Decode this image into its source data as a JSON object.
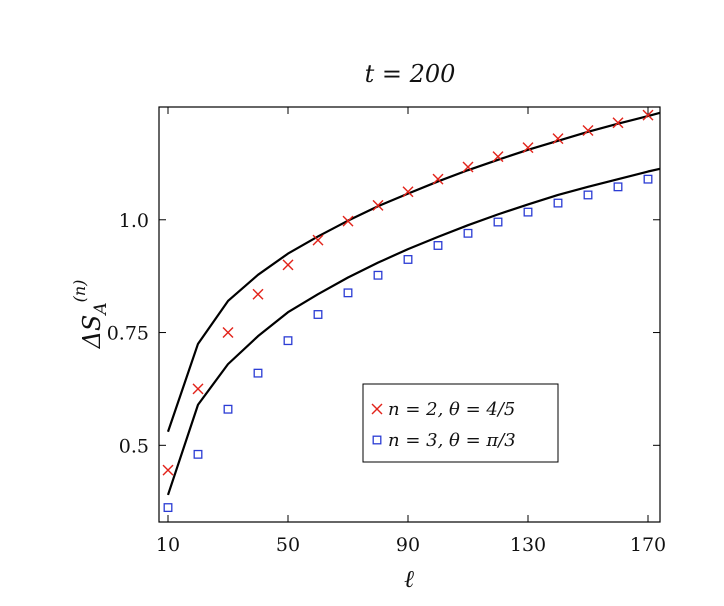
{
  "chart_data": {
    "type": "scatter",
    "title": "t = 200",
    "xlabel": "ℓ",
    "ylabel": "ΔS_A^(n)",
    "xlim": [
      7,
      174
    ],
    "ylim": [
      0.33,
      1.25
    ],
    "xticks": [
      10,
      50,
      90,
      130,
      170
    ],
    "yticks": [
      0.5,
      0.75,
      1.0
    ],
    "ytick_labels": [
      "0.5",
      "0.75",
      "1.0"
    ],
    "grid": false,
    "legend_position": "lower-right",
    "series": [
      {
        "name": "n = 2,  θ = 4/5",
        "marker": "x",
        "color": "#e2231a",
        "x": [
          10,
          20,
          30,
          40,
          50,
          60,
          70,
          80,
          90,
          100,
          110,
          120,
          130,
          140,
          150,
          160,
          170
        ],
        "y": [
          0.445,
          0.625,
          0.75,
          0.835,
          0.9,
          0.955,
          0.997,
          1.032,
          1.062,
          1.09,
          1.117,
          1.14,
          1.16,
          1.18,
          1.198,
          1.215,
          1.232
        ]
      },
      {
        "name": "n = 3,  θ = π/3",
        "marker": "square",
        "color": "#2b3cd4",
        "x": [
          10,
          20,
          30,
          40,
          50,
          60,
          70,
          80,
          90,
          100,
          110,
          120,
          130,
          140,
          150,
          160,
          170
        ],
        "y": [
          0.362,
          0.48,
          0.58,
          0.66,
          0.732,
          0.79,
          0.838,
          0.877,
          0.912,
          0.943,
          0.97,
          0.995,
          1.017,
          1.037,
          1.055,
          1.073,
          1.09
        ]
      }
    ],
    "curves": [
      {
        "x": [
          10,
          20,
          30,
          40,
          50,
          60,
          70,
          80,
          90,
          100,
          110,
          120,
          130,
          140,
          150,
          160,
          170,
          174
        ],
        "y": [
          0.53,
          0.725,
          0.82,
          0.878,
          0.925,
          0.963,
          0.998,
          1.03,
          1.058,
          1.085,
          1.11,
          1.133,
          1.155,
          1.175,
          1.195,
          1.213,
          1.23,
          1.237
        ],
        "color": "#000000"
      },
      {
        "x": [
          10,
          20,
          30,
          40,
          50,
          60,
          70,
          80,
          90,
          100,
          110,
          120,
          130,
          140,
          150,
          160,
          170,
          174
        ],
        "y": [
          0.39,
          0.59,
          0.68,
          0.742,
          0.795,
          0.835,
          0.872,
          0.905,
          0.935,
          0.962,
          0.988,
          1.012,
          1.034,
          1.055,
          1.073,
          1.09,
          1.107,
          1.113
        ],
        "color": "#000000"
      }
    ]
  }
}
